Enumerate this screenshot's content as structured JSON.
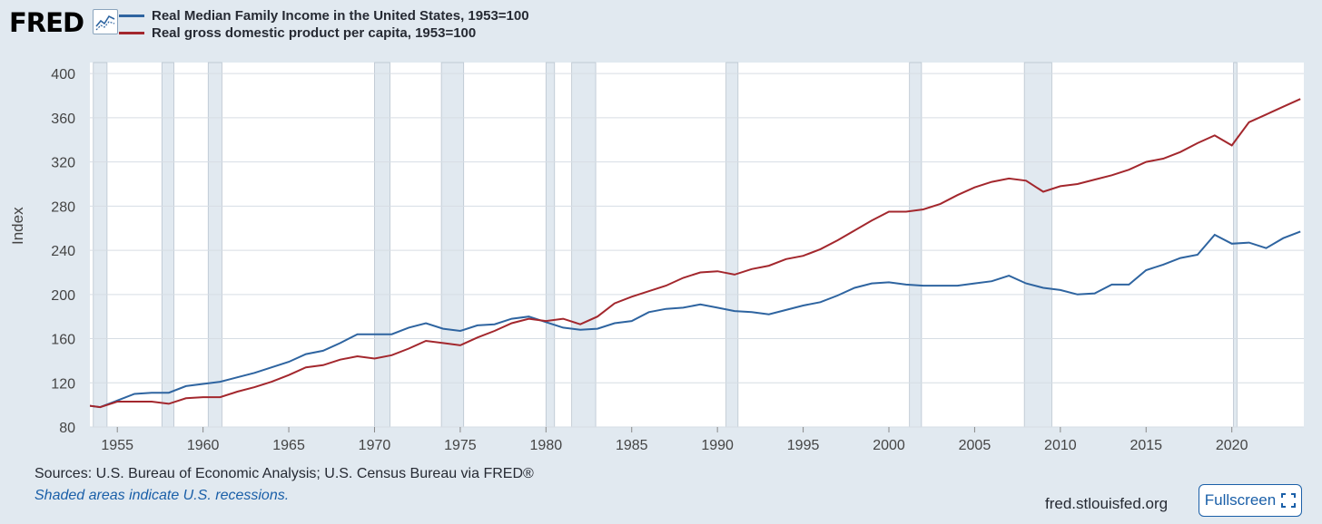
{
  "header": {
    "logo_text": "FRED",
    "logo_icon": "line-chart-icon"
  },
  "colors": {
    "income": "#2e64a0",
    "gdp": "#a3272d",
    "recession": "#e1e9f0",
    "grid": "#d6dde4",
    "background": "#e1e9f0",
    "plot_bg": "#ffffff"
  },
  "chart_data": {
    "type": "line",
    "title": "",
    "xlabel": "",
    "ylabel": "Index",
    "xlim": [
      1953.4,
      2024.2
    ],
    "ylim": [
      80,
      410
    ],
    "yticks": [
      80,
      120,
      160,
      200,
      240,
      280,
      320,
      360,
      400
    ],
    "xticks": [
      1955,
      1960,
      1965,
      1970,
      1975,
      1980,
      1985,
      1990,
      1995,
      2000,
      2005,
      2010,
      2015,
      2020
    ],
    "grid": true,
    "legend": "top-left",
    "recessions": [
      [
        1953.6,
        1954.4
      ],
      [
        1957.6,
        1958.3
      ],
      [
        1960.3,
        1961.1
      ],
      [
        1970.0,
        1970.9
      ],
      [
        1973.9,
        1975.2
      ],
      [
        1980.0,
        1980.5
      ],
      [
        1981.5,
        1982.9
      ],
      [
        1990.5,
        1991.2
      ],
      [
        2001.2,
        2001.9
      ],
      [
        2007.9,
        2009.5
      ],
      [
        2020.1,
        2020.3
      ]
    ],
    "x": [
      1953,
      1954,
      1955,
      1956,
      1957,
      1958,
      1959,
      1960,
      1961,
      1962,
      1963,
      1964,
      1965,
      1966,
      1967,
      1968,
      1969,
      1970,
      1971,
      1972,
      1973,
      1974,
      1975,
      1976,
      1977,
      1978,
      1979,
      1980,
      1981,
      1982,
      1983,
      1984,
      1985,
      1986,
      1987,
      1988,
      1989,
      1990,
      1991,
      1992,
      1993,
      1994,
      1995,
      1996,
      1997,
      1998,
      1999,
      2000,
      2001,
      2002,
      2003,
      2004,
      2005,
      2006,
      2007,
      2008,
      2009,
      2010,
      2011,
      2012,
      2013,
      2014,
      2015,
      2016,
      2017,
      2018,
      2019,
      2020,
      2021,
      2022,
      2023,
      2024
    ],
    "series": [
      {
        "name": "Real Median Family Income in the United States, 1953=100",
        "values": [
          100,
          98,
          104,
          110,
          111,
          111,
          117,
          119,
          121,
          125,
          129,
          134,
          139,
          146,
          149,
          156,
          164,
          164,
          164,
          170,
          174,
          169,
          167,
          172,
          173,
          178,
          180,
          175,
          170,
          168,
          169,
          174,
          176,
          184,
          187,
          188,
          191,
          188,
          185,
          184,
          182,
          186,
          190,
          193,
          199,
          206,
          210,
          211,
          209,
          208,
          208,
          208,
          210,
          212,
          217,
          210,
          206,
          204,
          200,
          201,
          209,
          209,
          222,
          227,
          233,
          236,
          254,
          246,
          247,
          242,
          251,
          257
        ]
      },
      {
        "name": "Real gross domestic product per capita, 1953=100",
        "values": [
          100,
          98,
          103,
          103,
          103,
          101,
          106,
          107,
          107,
          112,
          116,
          121,
          127,
          134,
          136,
          141,
          144,
          142,
          145,
          151,
          158,
          156,
          154,
          161,
          167,
          174,
          178,
          176,
          178,
          173,
          180,
          192,
          198,
          203,
          208,
          215,
          220,
          221,
          218,
          223,
          226,
          232,
          235,
          241,
          249,
          258,
          267,
          275,
          275,
          277,
          282,
          290,
          297,
          302,
          305,
          303,
          293,
          298,
          300,
          304,
          308,
          313,
          320,
          323,
          329,
          337,
          344,
          335,
          356,
          363,
          370,
          377
        ]
      }
    ]
  },
  "footer": {
    "sources": "Sources: U.S. Bureau of Economic Analysis; U.S. Census Bureau via FRED®",
    "note": "Shaded areas indicate U.S. recessions.",
    "site": "fred.stlouisfed.org",
    "fullscreen_label": "Fullscreen",
    "fullscreen_icon": "expand-icon"
  }
}
